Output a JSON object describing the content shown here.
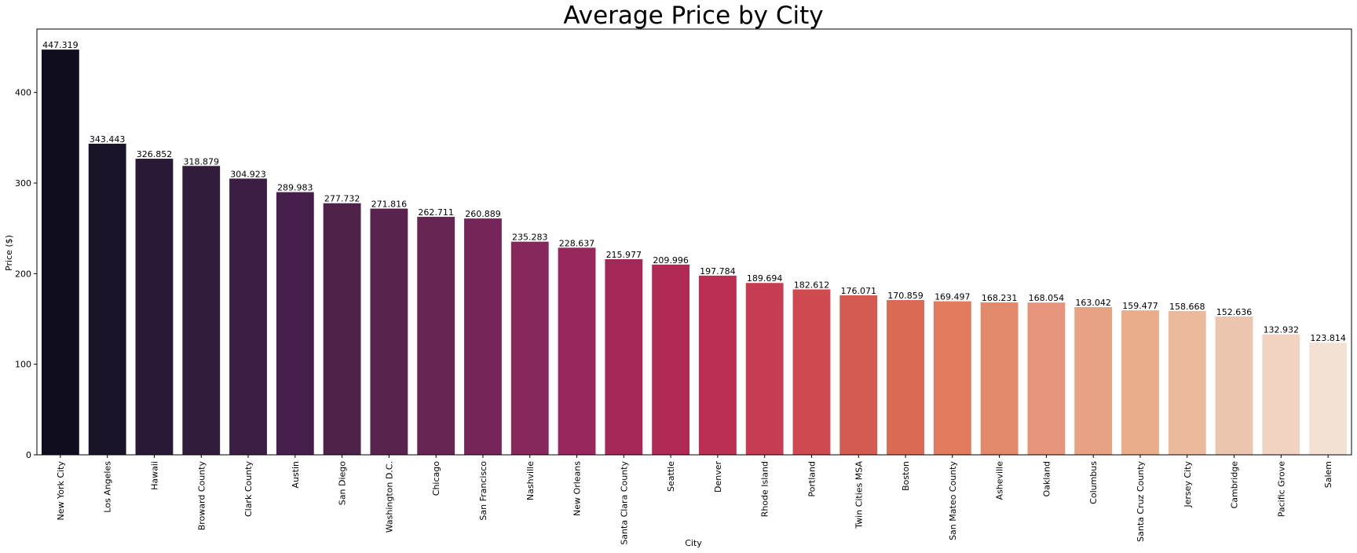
{
  "chart_data": {
    "type": "bar",
    "title": "Average Price by City",
    "xlabel": "City",
    "ylabel": "Price ($)",
    "ylim": [
      0,
      470
    ],
    "yticks": [
      0,
      100,
      200,
      300,
      400
    ],
    "grid": false,
    "legend": "none",
    "categories": [
      "New York City",
      "Los Angeles",
      "Hawaii",
      "Broward County",
      "Clark County",
      "Austin",
      "San Diego",
      "Washington D.C.",
      "Chicago",
      "San Francisco",
      "Nashville",
      "New Orleans",
      "Santa Clara County",
      "Seattle",
      "Denver",
      "Rhode Island",
      "Portland",
      "Twin Cities MSA",
      "Boston",
      "San Mateo County",
      "Asheville",
      "Oakland",
      "Columbus",
      "Santa Cruz County",
      "Jersey City",
      "Cambridge",
      "Pacific Grove",
      "Salem"
    ],
    "values": [
      447.319,
      343.443,
      326.852,
      318.879,
      304.923,
      289.983,
      277.732,
      271.816,
      262.711,
      260.889,
      235.283,
      228.637,
      215.977,
      209.996,
      197.784,
      189.694,
      182.612,
      176.071,
      170.859,
      169.497,
      168.231,
      168.054,
      163.042,
      159.477,
      158.668,
      152.636,
      132.932,
      123.814
    ],
    "labels": [
      "447.319",
      "343.443",
      "326.852",
      "318.879",
      "304.923",
      "289.983",
      "277.732",
      "271.816",
      "262.711",
      "260.889",
      "235.283",
      "228.637",
      "215.977",
      "209.996",
      "197.784",
      "189.694",
      "182.612",
      "176.071",
      "170.859",
      "169.497",
      "168.231",
      "168.054",
      "163.042",
      "159.477",
      "158.668",
      "152.636",
      "132.932",
      "123.814"
    ],
    "colors": [
      "#0f0d1e",
      "#1b1429",
      "#281a37",
      "#321c3c",
      "#3c1e45",
      "#461f4d",
      "#4f2249",
      "#5a234f",
      "#672553",
      "#75255a",
      "#87285c",
      "#97275c",
      "#a52859",
      "#b02a53",
      "#bc2f52",
      "#c63d52",
      "#cf4a50",
      "#d45b51",
      "#db6a54",
      "#e17b5f",
      "#e2896b",
      "#e4957b",
      "#e7a286",
      "#e9ad8c",
      "#ebb99b",
      "#ecc5ae",
      "#f1d3c2",
      "#f3e2d3"
    ]
  }
}
